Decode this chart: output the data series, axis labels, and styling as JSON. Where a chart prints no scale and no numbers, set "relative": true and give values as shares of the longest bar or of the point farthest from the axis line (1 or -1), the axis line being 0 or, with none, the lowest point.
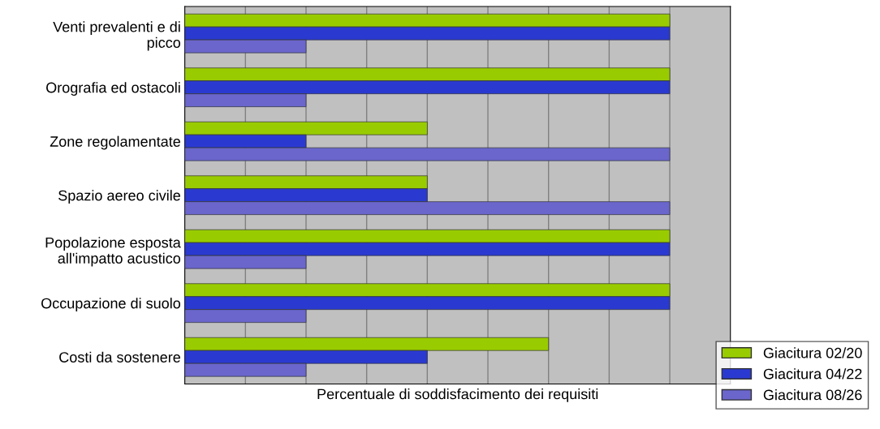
{
  "chart_data": {
    "type": "bar",
    "orientation": "horizontal",
    "relative": true,
    "xlabel": "Percentuale di soddisfacimento dei requisiti",
    "categories": [
      "Venti prevalenti e di\npicco",
      "Orografia ed ostacoli",
      "Zone regolamentate",
      "Spazio aereo civile",
      "Popolazione esposta\nall'impatto acustico",
      "Occupazione di suolo",
      "Costi da sostenere"
    ],
    "series": [
      {
        "name": "Giacitura 02/20",
        "color": "#99cc00",
        "values": [
          1,
          1,
          0.5,
          0.5,
          1,
          1,
          0.75
        ]
      },
      {
        "name": "Giacitura 04/22",
        "color": "#2a3ad0",
        "values": [
          1,
          1,
          0.25,
          0.5,
          1,
          1,
          0.5
        ]
      },
      {
        "name": "Giacitura 08/26",
        "color": "#6a66cc",
        "values": [
          0.25,
          0.25,
          1,
          1,
          0.25,
          0.25,
          0.25
        ]
      }
    ],
    "grid": "x",
    "legend": "bottom right"
  }
}
